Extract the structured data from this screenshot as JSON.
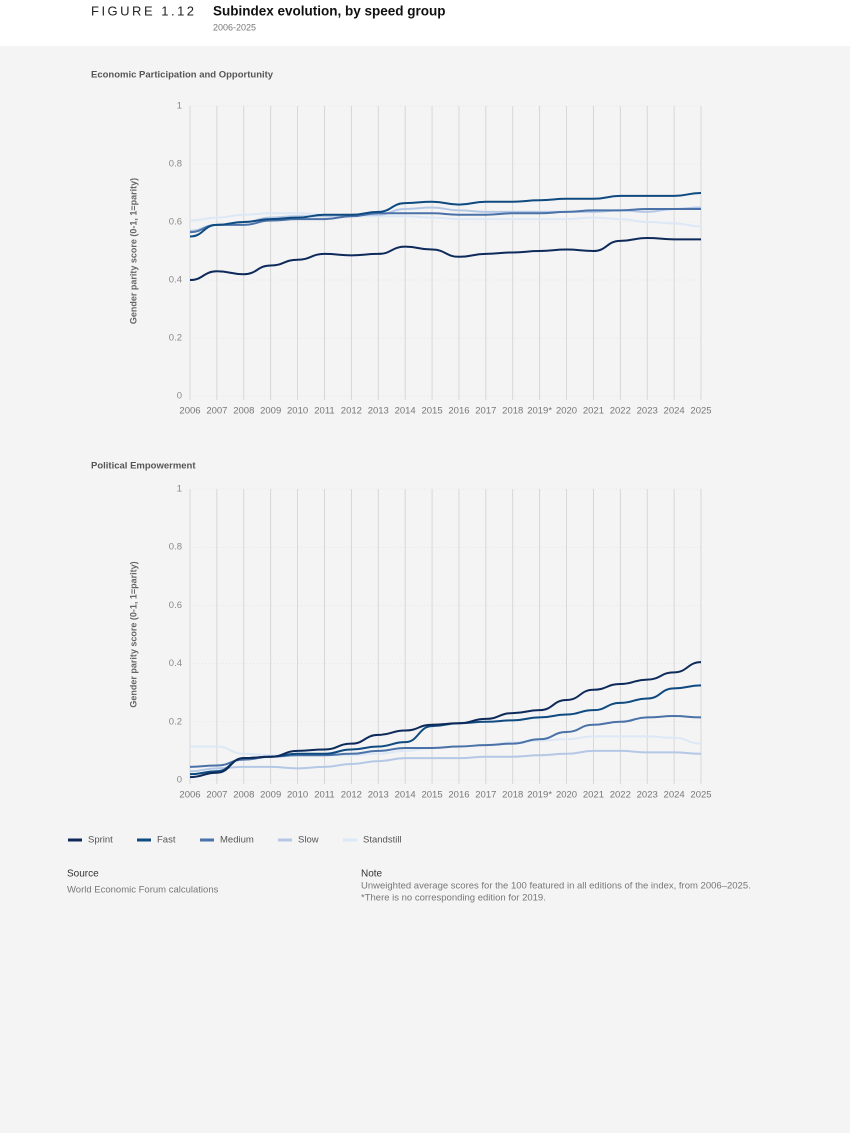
{
  "figure_label": "FIGURE 1.12",
  "title": "Subindex evolution, by speed group",
  "subtitle": "2006-2025",
  "chart_data": [
    {
      "type": "line",
      "title": "Economic Participation and Opportunity",
      "y_label": "Gender parity score (0-1, 1=parity)",
      "categories": [
        "2006",
        "2007",
        "2008",
        "2009",
        "2010",
        "2011",
        "2012",
        "2013",
        "2014",
        "2015",
        "2016",
        "2017",
        "2018",
        "2019*",
        "2020",
        "2021",
        "2022",
        "2023",
        "2024",
        "2025"
      ],
      "ylim": [
        0,
        1
      ],
      "yticks": [
        0,
        0.2,
        0.4,
        0.6,
        0.8,
        1
      ],
      "grid": true,
      "series": [
        {
          "name": "Sprint",
          "color": "#0d2a5a",
          "values": [
            0.4,
            0.43,
            0.42,
            0.45,
            0.47,
            0.49,
            0.485,
            0.49,
            0.515,
            0.505,
            0.48,
            0.49,
            0.495,
            0.5,
            0.505,
            0.5,
            0.535,
            0.545,
            0.54,
            0.54
          ]
        },
        {
          "name": "Fast",
          "color": "#0f4a80",
          "values": [
            0.55,
            0.59,
            0.6,
            0.61,
            0.615,
            0.625,
            0.625,
            0.635,
            0.665,
            0.67,
            0.66,
            0.67,
            0.67,
            0.675,
            0.68,
            0.68,
            0.69,
            0.69,
            0.69,
            0.7
          ]
        },
        {
          "name": "Medium",
          "color": "#4a72a8",
          "values": [
            0.565,
            0.59,
            0.59,
            0.605,
            0.61,
            0.61,
            0.62,
            0.63,
            0.63,
            0.63,
            0.625,
            0.625,
            0.63,
            0.63,
            0.635,
            0.64,
            0.64,
            0.645,
            0.645,
            0.645
          ]
        },
        {
          "name": "Slow",
          "color": "#b4c8e6",
          "values": [
            0.57,
            0.59,
            0.6,
            0.615,
            0.62,
            0.62,
            0.625,
            0.625,
            0.645,
            0.65,
            0.64,
            0.635,
            0.635,
            0.635,
            0.635,
            0.635,
            0.64,
            0.635,
            0.645,
            0.65
          ]
        },
        {
          "name": "Standstill",
          "color": "#dde8f6",
          "values": [
            0.605,
            0.615,
            0.625,
            0.63,
            0.63,
            0.625,
            0.62,
            0.62,
            0.62,
            0.615,
            0.61,
            0.61,
            0.61,
            0.61,
            0.61,
            0.615,
            0.61,
            0.6,
            0.595,
            0.585
          ]
        }
      ]
    },
    {
      "type": "line",
      "title": "Political Empowerment",
      "y_label": "Gender parity score (0-1, 1=parity)",
      "categories": [
        "2006",
        "2007",
        "2008",
        "2009",
        "2010",
        "2011",
        "2012",
        "2013",
        "2014",
        "2015",
        "2016",
        "2017",
        "2018",
        "2019*",
        "2020",
        "2021",
        "2022",
        "2023",
        "2024",
        "2025"
      ],
      "ylim": [
        0,
        1
      ],
      "yticks": [
        0,
        0.2,
        0.4,
        0.6,
        0.8,
        1
      ],
      "grid": true,
      "series": [
        {
          "name": "Sprint",
          "color": "#0d2a5a",
          "values": [
            0.01,
            0.025,
            0.075,
            0.08,
            0.1,
            0.105,
            0.125,
            0.155,
            0.17,
            0.19,
            0.195,
            0.21,
            0.23,
            0.24,
            0.275,
            0.31,
            0.33,
            0.345,
            0.37,
            0.405
          ]
        },
        {
          "name": "Fast",
          "color": "#0f4a80",
          "values": [
            0.02,
            0.03,
            0.075,
            0.08,
            0.09,
            0.09,
            0.105,
            0.115,
            0.13,
            0.185,
            0.195,
            0.2,
            0.205,
            0.215,
            0.225,
            0.24,
            0.265,
            0.28,
            0.315,
            0.325
          ]
        },
        {
          "name": "Medium",
          "color": "#4a72a8",
          "values": [
            0.045,
            0.05,
            0.07,
            0.08,
            0.085,
            0.085,
            0.09,
            0.1,
            0.11,
            0.11,
            0.115,
            0.12,
            0.125,
            0.14,
            0.165,
            0.19,
            0.2,
            0.215,
            0.22,
            0.215
          ]
        },
        {
          "name": "Slow",
          "color": "#b4c8e6",
          "values": [
            0.03,
            0.04,
            0.045,
            0.045,
            0.04,
            0.045,
            0.055,
            0.065,
            0.075,
            0.075,
            0.075,
            0.08,
            0.08,
            0.085,
            0.09,
            0.1,
            0.1,
            0.095,
            0.095,
            0.09
          ]
        },
        {
          "name": "Standstill",
          "color": "#dde8f6",
          "values": [
            0.115,
            0.115,
            0.09,
            0.085,
            0.085,
            0.085,
            0.085,
            0.09,
            0.1,
            0.11,
            0.115,
            0.12,
            0.13,
            0.135,
            0.14,
            0.15,
            0.15,
            0.15,
            0.145,
            0.125
          ]
        }
      ]
    }
  ],
  "source": {
    "heading": "Source",
    "text": "World Economic Forum calculations"
  },
  "note": {
    "heading": "Note",
    "lines": [
      "Unweighted average scores for the 100 featured in all editions of the index, from 2006–2025.",
      "*There is no corresponding edition for 2019."
    ]
  }
}
